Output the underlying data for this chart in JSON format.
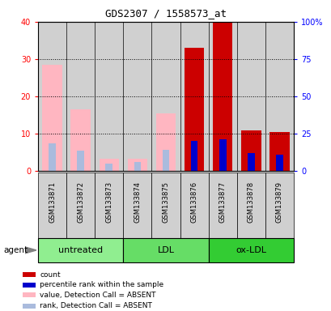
{
  "title": "GDS2307 / 1558573_at",
  "samples": [
    "GSM133871",
    "GSM133872",
    "GSM133873",
    "GSM133874",
    "GSM133875",
    "GSM133876",
    "GSM133877",
    "GSM133878",
    "GSM133879"
  ],
  "count_values": [
    null,
    null,
    null,
    null,
    null,
    33,
    40,
    11,
    10.5
  ],
  "rank_values": [
    null,
    null,
    null,
    null,
    null,
    20,
    21,
    12,
    11
  ],
  "absent_value_bars": [
    28.5,
    16.5,
    3.2,
    3.3,
    15.5,
    null,
    null,
    null,
    null
  ],
  "absent_rank_bars": [
    18.5,
    13.5,
    5.2,
    6.0,
    14.0,
    null,
    null,
    null,
    null
  ],
  "count_color": "#CC0000",
  "rank_color": "#0000CC",
  "absent_value_color": "#FFB6C1",
  "absent_rank_color": "#AABBDD",
  "ylim_left": [
    0,
    40
  ],
  "ylim_right": [
    0,
    100
  ],
  "yticks_left": [
    0,
    10,
    20,
    30,
    40
  ],
  "ytick_labels_right": [
    "0",
    "25",
    "50",
    "75",
    "100%"
  ],
  "bar_width": 0.7,
  "narrow_bar_width": 0.25,
  "background_color": "#ffffff",
  "sample_box_color": "#D0D0D0",
  "group_colors": [
    "#90EE90",
    "#66DD66",
    "#33CC33"
  ],
  "group_labels": [
    "untreated",
    "LDL",
    "ox-LDL"
  ],
  "group_starts": [
    0,
    3,
    6
  ],
  "group_ends": [
    3,
    6,
    9
  ],
  "legend_items": [
    {
      "color": "#CC0000",
      "label": "count"
    },
    {
      "color": "#0000CC",
      "label": "percentile rank within the sample"
    },
    {
      "color": "#FFB6C1",
      "label": "value, Detection Call = ABSENT"
    },
    {
      "color": "#AABBDD",
      "label": "rank, Detection Call = ABSENT"
    }
  ]
}
